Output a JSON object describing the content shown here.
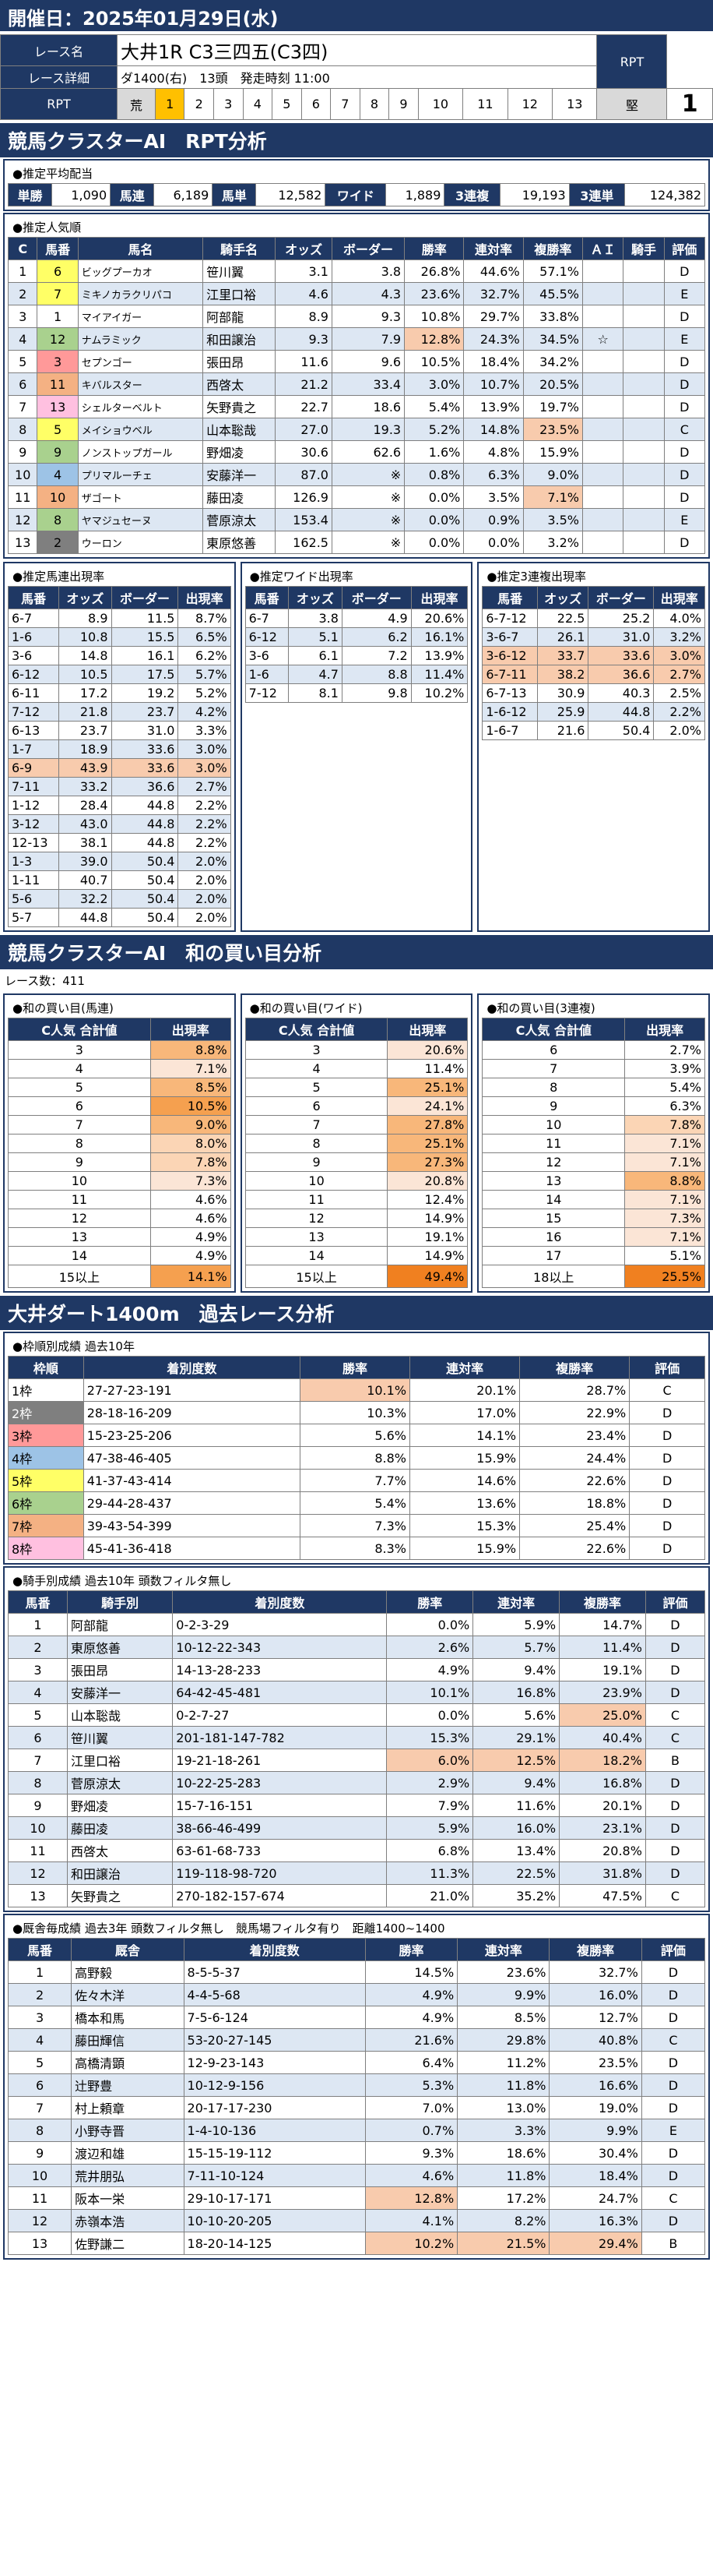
{
  "header": {
    "date_label": "開催日：2025年01月29日(水)"
  },
  "race": {
    "name_label": "レース名",
    "name": "大井1R C3三四五(C3四)",
    "detail_label": "レース詳細",
    "detail": "ダ1400(右)　13頭　発走時刻 11:00",
    "rpt_label": "RPT",
    "rpt_scale_left": "荒",
    "rpt_scale_right": "堅",
    "rpt_nums": [
      "1",
      "2",
      "3",
      "4",
      "5",
      "6",
      "7",
      "8",
      "9",
      "10",
      "11",
      "12",
      "13"
    ],
    "rpt_value_label": "RPT",
    "rpt_value": "1"
  },
  "s1": {
    "title": "競馬クラスターAI　RPT分析"
  },
  "payout": {
    "title": "●推定平均配当",
    "items": [
      {
        "k": "単勝",
        "v": "1,090"
      },
      {
        "k": "馬連",
        "v": "6,189"
      },
      {
        "k": "馬単",
        "v": "12,582"
      },
      {
        "k": "ワイド",
        "v": "1,889"
      },
      {
        "k": "3連複",
        "v": "19,193"
      },
      {
        "k": "3連単",
        "v": "124,382"
      }
    ]
  },
  "pop": {
    "title": "●推定人気順",
    "headers": [
      "C",
      "馬番",
      "馬名",
      "騎手名",
      "オッズ",
      "ボーダー",
      "勝率",
      "連対率",
      "複勝率",
      "ＡＩ",
      "騎手",
      "評価"
    ],
    "rows": [
      [
        "1",
        "6",
        "ビッグプーカオ",
        "笹川翼",
        "3.1",
        "3.8",
        "26.8%",
        "44.6%",
        "57.1%",
        "",
        "",
        "D"
      ],
      [
        "2",
        "7",
        "ミキノカラクリパコ",
        "江里口裕",
        "4.6",
        "4.3",
        "23.6%",
        "32.7%",
        "45.5%",
        "",
        "",
        "E"
      ],
      [
        "3",
        "1",
        "マイアイガー",
        "阿部龍",
        "8.9",
        "9.3",
        "10.8%",
        "29.7%",
        "33.8%",
        "",
        "",
        "D"
      ],
      [
        "4",
        "12",
        "ナムラミック",
        "和田譲治",
        "9.3",
        "7.9",
        "12.8%",
        "24.3%",
        "34.5%",
        "☆",
        "",
        "E"
      ],
      [
        "5",
        "3",
        "セプンゴー",
        "張田昂",
        "11.6",
        "9.6",
        "10.5%",
        "18.4%",
        "34.2%",
        "",
        "",
        "D"
      ],
      [
        "6",
        "11",
        "キバルスター",
        "西啓太",
        "21.2",
        "33.4",
        "3.0%",
        "10.7%",
        "20.5%",
        "",
        "",
        "D"
      ],
      [
        "7",
        "13",
        "シェルターベルト",
        "矢野貴之",
        "22.7",
        "18.6",
        "5.4%",
        "13.9%",
        "19.7%",
        "",
        "",
        "D"
      ],
      [
        "8",
        "5",
        "メイショウベル",
        "山本聡哉",
        "27.0",
        "19.3",
        "5.2%",
        "14.8%",
        "23.5%",
        "",
        "",
        "C"
      ],
      [
        "9",
        "9",
        "ノンストップガール",
        "野畑凌",
        "30.6",
        "62.6",
        "1.6%",
        "4.8%",
        "15.9%",
        "",
        "",
        "D"
      ],
      [
        "10",
        "4",
        "プリマルーチェ",
        "安藤洋一",
        "87.0",
        "※",
        "0.8%",
        "6.3%",
        "9.0%",
        "",
        "",
        "D"
      ],
      [
        "11",
        "10",
        "ザゴート",
        "藤田凌",
        "126.9",
        "※",
        "0.0%",
        "3.5%",
        "7.1%",
        "",
        "",
        "D"
      ],
      [
        "12",
        "8",
        "ヤマジュセーヌ",
        "菅原涼太",
        "153.4",
        "※",
        "0.0%",
        "0.9%",
        "3.5%",
        "",
        "",
        "E"
      ],
      [
        "13",
        "2",
        "ウーロン",
        "東原悠善",
        "162.5",
        "※",
        "0.0%",
        "0.0%",
        "3.2%",
        "",
        "",
        "D"
      ]
    ]
  },
  "umaren": {
    "title": "●推定馬連出現率",
    "headers": [
      "馬番",
      "オッズ",
      "ボーダー",
      "出現率"
    ],
    "rows": [
      [
        "6-7",
        "8.9",
        "11.5",
        "8.7%"
      ],
      [
        "1-6",
        "10.8",
        "15.5",
        "6.5%"
      ],
      [
        "3-6",
        "14.8",
        "16.1",
        "6.2%"
      ],
      [
        "6-12",
        "10.5",
        "17.5",
        "5.7%"
      ],
      [
        "6-11",
        "17.2",
        "19.2",
        "5.2%"
      ],
      [
        "7-12",
        "21.8",
        "23.7",
        "4.2%"
      ],
      [
        "6-13",
        "23.7",
        "31.0",
        "3.3%"
      ],
      [
        "1-7",
        "18.9",
        "33.6",
        "3.0%"
      ],
      [
        "6-9",
        "43.9",
        "33.6",
        "3.0%"
      ],
      [
        "7-11",
        "33.2",
        "36.6",
        "2.7%"
      ],
      [
        "1-12",
        "28.4",
        "44.8",
        "2.2%"
      ],
      [
        "3-12",
        "43.0",
        "44.8",
        "2.2%"
      ],
      [
        "12-13",
        "38.1",
        "44.8",
        "2.2%"
      ],
      [
        "1-3",
        "39.0",
        "50.4",
        "2.0%"
      ],
      [
        "1-11",
        "40.7",
        "50.4",
        "2.0%"
      ],
      [
        "5-6",
        "32.2",
        "50.4",
        "2.0%"
      ],
      [
        "5-7",
        "44.8",
        "50.4",
        "2.0%"
      ]
    ]
  },
  "wide": {
    "title": "●推定ワイド出現率",
    "headers": [
      "馬番",
      "オッズ",
      "ボーダー",
      "出現率"
    ],
    "rows": [
      [
        "6-7",
        "3.8",
        "4.9",
        "20.6%"
      ],
      [
        "6-12",
        "5.1",
        "6.2",
        "16.1%"
      ],
      [
        "3-6",
        "6.1",
        "7.2",
        "13.9%"
      ],
      [
        "1-6",
        "4.7",
        "8.8",
        "11.4%"
      ],
      [
        "7-12",
        "8.1",
        "9.8",
        "10.2%"
      ]
    ]
  },
  "sanrenpuku": {
    "title": "●推定3連複出現率",
    "headers": [
      "馬番",
      "オッズ",
      "ボーダー",
      "出現率"
    ],
    "rows": [
      [
        "6-7-12",
        "22.5",
        "25.2",
        "4.0%"
      ],
      [
        "3-6-7",
        "26.1",
        "31.0",
        "3.2%"
      ],
      [
        "3-6-12",
        "33.7",
        "33.6",
        "3.0%"
      ],
      [
        "6-7-11",
        "38.2",
        "36.6",
        "2.7%"
      ],
      [
        "6-7-13",
        "30.9",
        "40.3",
        "2.5%"
      ],
      [
        "1-6-12",
        "25.9",
        "44.8",
        "2.2%"
      ],
      [
        "1-6-7",
        "21.6",
        "50.4",
        "2.0%"
      ]
    ]
  },
  "s2": {
    "title": "競馬クラスターAI　和の買い目分析",
    "count": "レース数：411"
  },
  "wa_umaren": {
    "title": "●和の買い目(馬連)",
    "headers": [
      "C人気\n合計値",
      "出現率"
    ],
    "rows": [
      [
        "3",
        "8.8%"
      ],
      [
        "4",
        "7.1%"
      ],
      [
        "5",
        "8.5%"
      ],
      [
        "6",
        "10.5%"
      ],
      [
        "7",
        "9.0%"
      ],
      [
        "8",
        "8.0%"
      ],
      [
        "9",
        "7.8%"
      ],
      [
        "10",
        "7.3%"
      ],
      [
        "11",
        "4.6%"
      ],
      [
        "12",
        "4.6%"
      ],
      [
        "13",
        "4.9%"
      ],
      [
        "14",
        "4.9%"
      ],
      [
        "15以上",
        "14.1%"
      ]
    ]
  },
  "wa_wide": {
    "title": "●和の買い目(ワイド)",
    "headers": [
      "C人気\n合計値",
      "出現率"
    ],
    "rows": [
      [
        "3",
        "20.6%"
      ],
      [
        "4",
        "11.4%"
      ],
      [
        "5",
        "25.1%"
      ],
      [
        "6",
        "24.1%"
      ],
      [
        "7",
        "27.8%"
      ],
      [
        "8",
        "25.1%"
      ],
      [
        "9",
        "27.3%"
      ],
      [
        "10",
        "20.8%"
      ],
      [
        "11",
        "12.4%"
      ],
      [
        "12",
        "14.9%"
      ],
      [
        "13",
        "19.1%"
      ],
      [
        "14",
        "14.9%"
      ],
      [
        "15以上",
        "49.4%"
      ]
    ]
  },
  "wa_3": {
    "title": "●和の買い目(3連複)",
    "headers": [
      "C人気\n合計値",
      "出現率"
    ],
    "rows": [
      [
        "6",
        "2.7%"
      ],
      [
        "7",
        "3.9%"
      ],
      [
        "8",
        "5.4%"
      ],
      [
        "9",
        "6.3%"
      ],
      [
        "10",
        "7.8%"
      ],
      [
        "11",
        "7.1%"
      ],
      [
        "12",
        "7.1%"
      ],
      [
        "13",
        "8.8%"
      ],
      [
        "14",
        "7.1%"
      ],
      [
        "15",
        "7.3%"
      ],
      [
        "16",
        "7.1%"
      ],
      [
        "17",
        "5.1%"
      ],
      [
        "18以上",
        "25.5%"
      ]
    ]
  },
  "s3": {
    "title": "大井ダート1400m　過去レース分析"
  },
  "waku": {
    "title": "●枠順別成績 過去10年",
    "headers": [
      "枠順",
      "着別度数",
      "勝率",
      "連対率",
      "複勝率",
      "評価"
    ],
    "rows": [
      [
        "1枠",
        "27-27-23-191",
        "10.1%",
        "20.1%",
        "28.7%",
        "C"
      ],
      [
        "2枠",
        "28-18-16-209",
        "10.3%",
        "17.0%",
        "22.9%",
        "D"
      ],
      [
        "3枠",
        "15-23-25-206",
        "5.6%",
        "14.1%",
        "23.4%",
        "D"
      ],
      [
        "4枠",
        "47-38-46-405",
        "8.8%",
        "15.9%",
        "24.4%",
        "D"
      ],
      [
        "5枠",
        "41-37-43-414",
        "7.7%",
        "14.6%",
        "22.6%",
        "D"
      ],
      [
        "6枠",
        "29-44-28-437",
        "5.4%",
        "13.6%",
        "18.8%",
        "D"
      ],
      [
        "7枠",
        "39-43-54-399",
        "7.3%",
        "15.3%",
        "25.4%",
        "D"
      ],
      [
        "8枠",
        "45-41-36-418",
        "8.3%",
        "15.9%",
        "22.6%",
        "D"
      ]
    ]
  },
  "jockey": {
    "title": "●騎手別成績 過去10年 頭数フィルタ無し",
    "headers": [
      "馬番",
      "騎手別",
      "着別度数",
      "勝率",
      "連対率",
      "複勝率",
      "評価"
    ],
    "rows": [
      [
        "1",
        "阿部龍",
        "0-2-3-29",
        "0.0%",
        "5.9%",
        "14.7%",
        "D"
      ],
      [
        "2",
        "東原悠善",
        "10-12-22-343",
        "2.6%",
        "5.7%",
        "11.4%",
        "D"
      ],
      [
        "3",
        "張田昂",
        "14-13-28-233",
        "4.9%",
        "9.4%",
        "19.1%",
        "D"
      ],
      [
        "4",
        "安藤洋一",
        "64-42-45-481",
        "10.1%",
        "16.8%",
        "23.9%",
        "D"
      ],
      [
        "5",
        "山本聡哉",
        "0-2-7-27",
        "0.0%",
        "5.6%",
        "25.0%",
        "C"
      ],
      [
        "6",
        "笹川翼",
        "201-181-147-782",
        "15.3%",
        "29.1%",
        "40.4%",
        "C"
      ],
      [
        "7",
        "江里口裕",
        "19-21-18-261",
        "6.0%",
        "12.5%",
        "18.2%",
        "B"
      ],
      [
        "8",
        "菅原涼太",
        "10-22-25-283",
        "2.9%",
        "9.4%",
        "16.8%",
        "D"
      ],
      [
        "9",
        "野畑凌",
        "15-7-16-151",
        "7.9%",
        "11.6%",
        "20.1%",
        "D"
      ],
      [
        "10",
        "藤田凌",
        "38-66-46-499",
        "5.9%",
        "16.0%",
        "23.1%",
        "D"
      ],
      [
        "11",
        "西啓太",
        "63-61-68-733",
        "6.8%",
        "13.4%",
        "20.8%",
        "D"
      ],
      [
        "12",
        "和田譲治",
        "119-118-98-720",
        "11.3%",
        "22.5%",
        "31.8%",
        "D"
      ],
      [
        "13",
        "矢野貴之",
        "270-182-157-674",
        "21.0%",
        "35.2%",
        "47.5%",
        "C"
      ]
    ]
  },
  "trainer": {
    "title": "●厩舎毎成績 過去3年 頭数フィルタ無し　競馬場フィルタ有り　距離1400~1400",
    "headers": [
      "馬番",
      "厩舎",
      "着別度数",
      "勝率",
      "連対率",
      "複勝率",
      "評価"
    ],
    "rows": [
      [
        "1",
        "高野毅",
        "8-5-5-37",
        "14.5%",
        "23.6%",
        "32.7%",
        "D"
      ],
      [
        "2",
        "佐々木洋",
        "4-4-5-68",
        "4.9%",
        "9.9%",
        "16.0%",
        "D"
      ],
      [
        "3",
        "橋本和馬",
        "7-5-6-124",
        "4.9%",
        "8.5%",
        "12.7%",
        "D"
      ],
      [
        "4",
        "藤田輝信",
        "53-20-27-145",
        "21.6%",
        "29.8%",
        "40.8%",
        "C"
      ],
      [
        "5",
        "高橋清顕",
        "12-9-23-143",
        "6.4%",
        "11.2%",
        "23.5%",
        "D"
      ],
      [
        "6",
        "辻野豊",
        "10-12-9-156",
        "5.3%",
        "11.8%",
        "16.6%",
        "D"
      ],
      [
        "7",
        "村上頼章",
        "20-17-17-230",
        "7.0%",
        "13.0%",
        "19.0%",
        "D"
      ],
      [
        "8",
        "小野寺晋",
        "1-4-10-136",
        "0.7%",
        "3.3%",
        "9.9%",
        "E"
      ],
      [
        "9",
        "渡辺和雄",
        "15-15-19-112",
        "9.3%",
        "18.6%",
        "30.4%",
        "D"
      ],
      [
        "10",
        "荒井朋弘",
        "7-11-10-124",
        "4.6%",
        "11.8%",
        "18.4%",
        "D"
      ],
      [
        "11",
        "阪本一栄",
        "29-10-17-171",
        "12.8%",
        "17.2%",
        "24.7%",
        "C"
      ],
      [
        "12",
        "赤嶺本浩",
        "10-10-20-205",
        "4.1%",
        "8.2%",
        "16.3%",
        "D"
      ],
      [
        "13",
        "佐野謙二",
        "18-20-14-125",
        "10.2%",
        "21.5%",
        "29.4%",
        "B"
      ]
    ]
  }
}
